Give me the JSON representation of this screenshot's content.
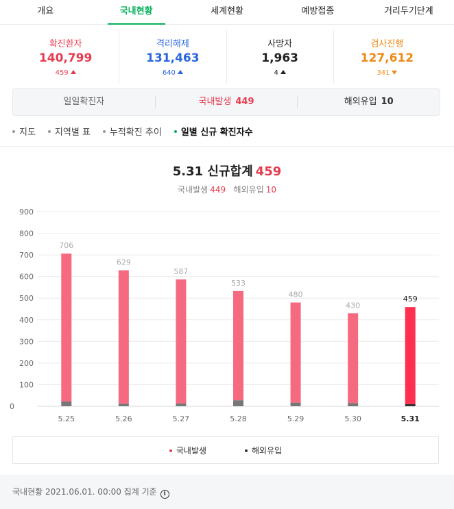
{
  "tabs": [
    {
      "label": "개요"
    },
    {
      "label": "국내현황",
      "active": true
    },
    {
      "label": "세계현황"
    },
    {
      "label": "예방접종"
    },
    {
      "label": "거리두기단계"
    }
  ],
  "stats": {
    "confirmed": {
      "label": "확진환자",
      "value": "140,799",
      "delta": "459",
      "direction": "up",
      "color": "#e63c4f"
    },
    "released": {
      "label": "격리해제",
      "value": "131,463",
      "delta": "640",
      "direction": "up",
      "color": "#2a67dd"
    },
    "deaths": {
      "label": "사망자",
      "value": "1,963",
      "delta": "4",
      "direction": "up",
      "color": "#222222"
    },
    "testing": {
      "label": "검사진행",
      "value": "127,612",
      "delta": "341",
      "direction": "down",
      "color": "#ef8a17"
    }
  },
  "daily": {
    "label": "일일확진자",
    "domestic_label": "국내발생",
    "domestic_value": "449",
    "overseas_label": "해외유입",
    "overseas_value": "10"
  },
  "subnav": [
    {
      "label": "지도"
    },
    {
      "label": "지역별 표"
    },
    {
      "label": "누적확진 추이"
    },
    {
      "label": "일별 신규 확진자수",
      "active": true
    }
  ],
  "chart_header": {
    "title": "5.31 신규합계",
    "total": "459",
    "domestic_label": "국내발생",
    "domestic_value": "449",
    "overseas_label": "해외유입",
    "overseas_value": "10"
  },
  "chart_data": {
    "type": "bar",
    "stacked": true,
    "categories": [
      "5.25",
      "5.26",
      "5.27",
      "5.28",
      "5.29",
      "5.30",
      "5.31"
    ],
    "totals": [
      706,
      629,
      587,
      533,
      480,
      430,
      459
    ],
    "series": [
      {
        "name": "국내발생",
        "values": [
          684,
          617,
          574,
          505,
          463,
          415,
          449
        ],
        "color": "#f56a80",
        "highlight_color": "#ff2f4f"
      },
      {
        "name": "해외유입",
        "values": [
          22,
          12,
          13,
          28,
          17,
          15,
          10
        ],
        "color": "#777777",
        "highlight_color": "#333333"
      }
    ],
    "highlight_index": 6,
    "yticks": [
      0,
      100,
      200,
      300,
      400,
      500,
      600,
      700,
      800,
      900
    ],
    "ylim": [
      0,
      900
    ],
    "grid": true,
    "legend_position": "bottom"
  },
  "legend": [
    {
      "label": "국내발생",
      "color": "#e63c4f"
    },
    {
      "label": "해외유입",
      "color": "#333333"
    }
  ],
  "footer": {
    "text": "국내현황 2021.06.01. 00:00 집계 기준",
    "icon": "info-icon"
  }
}
